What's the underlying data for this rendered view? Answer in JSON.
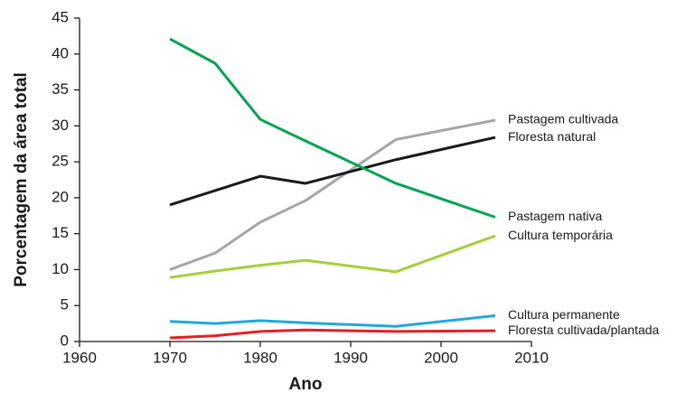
{
  "chart_data": {
    "type": "line",
    "x_label": "Ano",
    "y_label": "Porcentagem da área total",
    "x": [
      1970,
      1975,
      1980,
      1985,
      1995,
      2006
    ],
    "series": [
      {
        "name": "Pastagem cultivada",
        "color": "#a6a6a6",
        "values": [
          10.0,
          12.3,
          16.6,
          19.6,
          28.1,
          30.8
        ]
      },
      {
        "name": "Floresta natural",
        "color": "#1a1a1a",
        "values": [
          19.0,
          21.0,
          23.0,
          22.0,
          25.3,
          28.4
        ]
      },
      {
        "name": "Pastagem nativa",
        "color": "#00a651",
        "values": [
          42.1,
          38.7,
          30.9,
          27.9,
          22.0,
          17.3
        ]
      },
      {
        "name": "Cultura temporária",
        "color": "#a6ce39",
        "values": [
          8.9,
          9.8,
          10.6,
          11.3,
          9.7,
          14.7
        ]
      },
      {
        "name": "Cultura permanente",
        "color": "#1fa9e1",
        "values": [
          2.8,
          2.5,
          2.9,
          2.6,
          2.1,
          3.6
        ]
      },
      {
        "name": "Floresta cultivada/plantada",
        "color": "#e31e24",
        "values": [
          0.5,
          0.8,
          1.4,
          1.6,
          1.4,
          1.5
        ]
      }
    ],
    "xlim": [
      1960,
      2010
    ],
    "xticks": [
      1960,
      1970,
      1980,
      1990,
      2000,
      2010
    ],
    "ylim": [
      0,
      45
    ],
    "yticks": [
      0,
      5,
      10,
      15,
      20,
      25,
      30,
      35,
      40,
      45
    ],
    "grid": false
  }
}
